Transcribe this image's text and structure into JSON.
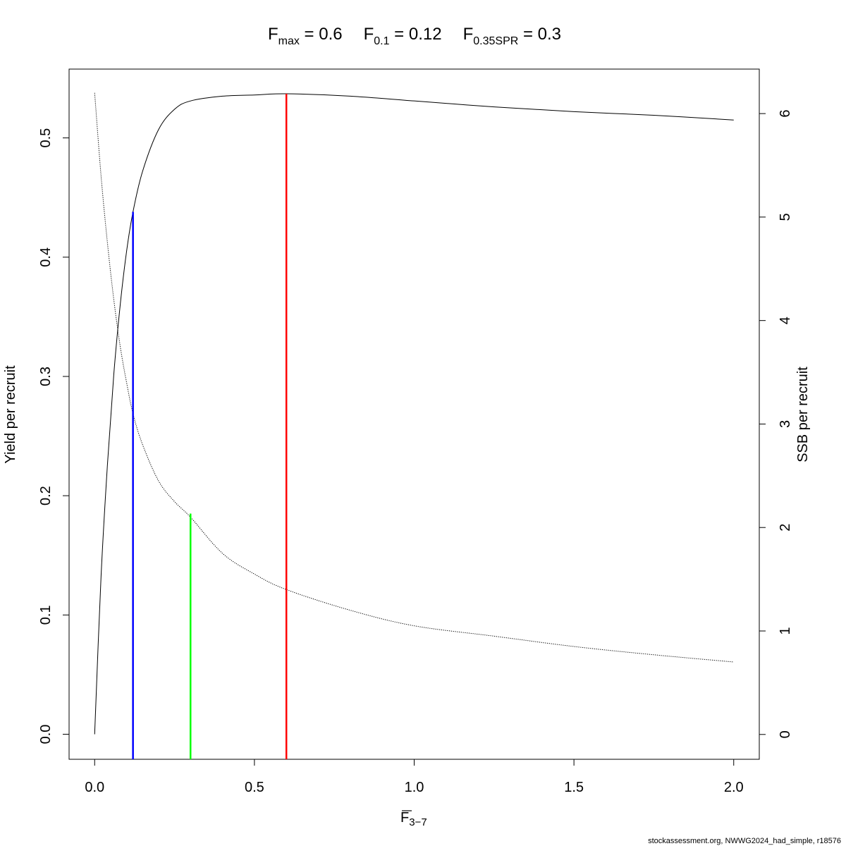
{
  "chart_data": {
    "type": "line",
    "title": {
      "fmax": {
        "main": "F",
        "sub": "max",
        "value": " = 0.6"
      },
      "f01": {
        "main": "F",
        "sub": "0.1",
        "value": " = 0.12"
      },
      "fspr": {
        "main": "F",
        "sub": "0.35SPR",
        "value": " = 0.3"
      }
    },
    "xlabel": {
      "main": "F",
      "sub": "3−7"
    },
    "ylabel": "Yield per recruit",
    "y2label": "SSB per recruit",
    "xlim": [
      -0.08,
      2.08
    ],
    "ylim": [
      -0.021,
      0.5577
    ],
    "y2lim": [
      -0.24,
      6.43
    ],
    "xticks": [
      "0.0",
      "0.5",
      "1.0",
      "1.5",
      "2.0"
    ],
    "yticks": [
      "0.0",
      "0.1",
      "0.2",
      "0.3",
      "0.4",
      "0.5"
    ],
    "y2ticks": [
      "0",
      "1",
      "2",
      "3",
      "4",
      "5",
      "6"
    ],
    "grid": false,
    "series": [
      {
        "axis": "left",
        "style": "solid",
        "color": "#000000",
        "x": [
          0,
          0.02,
          0.04,
          0.06,
          0.08,
          0.1,
          0.12,
          0.15,
          0.2,
          0.25,
          0.3,
          0.4,
          0.5,
          0.6,
          0.8,
          1.0,
          1.25,
          1.5,
          1.75,
          2.0
        ],
        "y": [
          0,
          0.132,
          0.226,
          0.302,
          0.36,
          0.405,
          0.438,
          0.472,
          0.507,
          0.524,
          0.531,
          0.535,
          0.536,
          0.537,
          0.535,
          0.531,
          0.526,
          0.522,
          0.519,
          0.515
        ]
      },
      {
        "axis": "right",
        "style": "dotted",
        "color": "#000000",
        "x": [
          0,
          0.02,
          0.04,
          0.06,
          0.08,
          0.1,
          0.12,
          0.15,
          0.2,
          0.25,
          0.3,
          0.4,
          0.5,
          0.6,
          0.8,
          1.0,
          1.25,
          1.5,
          1.75,
          2.0
        ],
        "y": [
          6.2,
          5.4,
          4.75,
          4.2,
          3.75,
          3.4,
          3.1,
          2.8,
          2.45,
          2.25,
          2.1,
          1.75,
          1.55,
          1.4,
          1.2,
          1.05,
          0.95,
          0.85,
          0.77,
          0.7
        ]
      }
    ],
    "reference_lines": [
      {
        "name": "F0.1",
        "x": 0.12,
        "y": 0.438,
        "color": "#0000ff"
      },
      {
        "name": "F0.35SPR",
        "x": 0.3,
        "y": 0.185,
        "color": "#00ff00"
      },
      {
        "name": "Fmax",
        "x": 0.6,
        "y": 0.537,
        "color": "#ff0000"
      }
    ]
  },
  "footer": "stockassessment.org, NWWG2024_had_simple, r18576"
}
